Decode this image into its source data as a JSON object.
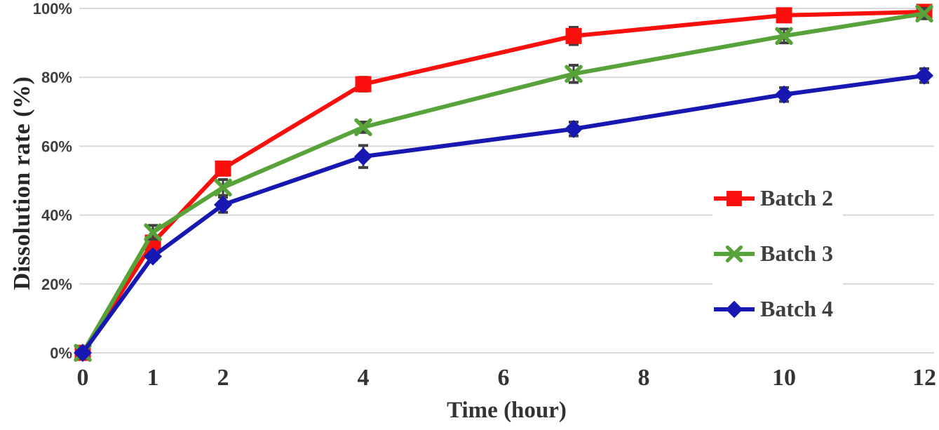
{
  "chart_data": {
    "type": "line",
    "title": "",
    "xlabel": "Time (hour)",
    "ylabel": "Dissolution rate (%)",
    "x": [
      0,
      1,
      2,
      4,
      7,
      10,
      12
    ],
    "xtick_labels": [
      "0",
      "1",
      "2",
      "4",
      "6",
      "8",
      "10",
      "12"
    ],
    "xtick_values": [
      0,
      1,
      2,
      4,
      6,
      8,
      10,
      12
    ],
    "ytick_labels": [
      "0%",
      "20%",
      "40%",
      "60%",
      "80%",
      "100%"
    ],
    "ytick_values": [
      0,
      20,
      40,
      60,
      80,
      100
    ],
    "xlim": [
      0,
      12
    ],
    "ylim": [
      0,
      100
    ],
    "grid": "horizontal-only",
    "legend_position": "right-middle",
    "error_bars": true,
    "series": [
      {
        "name": "Batch 2",
        "color": "#fb0f0c",
        "marker": "square",
        "values": [
          0,
          32,
          53.5,
          78,
          92,
          98,
          99
        ],
        "errors": [
          0.5,
          1,
          1.5,
          2,
          2.5,
          1.5,
          1.8
        ]
      },
      {
        "name": "Batch 3",
        "color": "#58a23a",
        "marker": "x",
        "values": [
          0,
          35,
          48,
          65.5,
          81,
          92,
          98.5
        ],
        "errors": [
          0.5,
          2,
          2.3,
          1.5,
          2.5,
          2,
          1.5
        ]
      },
      {
        "name": "Batch 4",
        "color": "#1717b2",
        "marker": "diamond",
        "values": [
          0,
          28,
          43,
          57,
          65,
          75,
          80.5
        ],
        "errors": [
          0.5,
          1,
          2.2,
          3.2,
          2,
          2,
          2
        ]
      }
    ],
    "colors": {
      "gridline": "#d9d9d9",
      "y_tick_label": "#3f3f3f",
      "x_tick_label": "#333333",
      "axis_title": "#262626",
      "error_bar": "#404040",
      "background": "#ffffff"
    }
  }
}
